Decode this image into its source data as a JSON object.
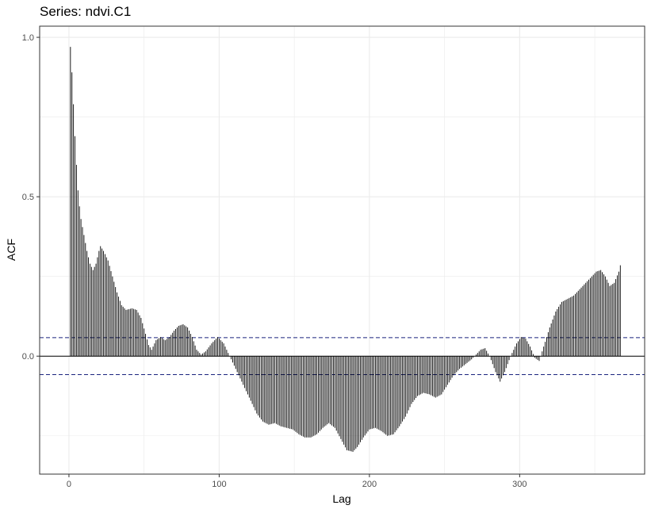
{
  "chart_data": {
    "type": "bar",
    "title": "Series: ndvi.C1",
    "xlabel": "Lag",
    "ylabel": "ACF",
    "xlim": [
      -19.5,
      383.2
    ],
    "ylim": [
      -0.37,
      1.035
    ],
    "x_ticks": [
      0,
      100,
      200,
      300
    ],
    "y_ticks": [
      0.0,
      0.5,
      1.0
    ],
    "x_tick_labels": [
      "0",
      "100",
      "200",
      "300"
    ],
    "y_tick_labels": [
      "0.0",
      "0.5",
      "1.0"
    ],
    "grid": true,
    "confidence_bound": 0.058,
    "colors": {
      "bars": "#000000",
      "bounds": "#1a237e",
      "grid": "#ebebeb",
      "panel_border": "#333333"
    },
    "lag_step": 1,
    "lag_start": 1,
    "keypoints": [
      [
        1,
        0.97
      ],
      [
        2,
        0.89
      ],
      [
        3,
        0.79
      ],
      [
        4,
        0.69
      ],
      [
        5,
        0.6
      ],
      [
        6,
        0.52
      ],
      [
        7,
        0.47
      ],
      [
        8,
        0.43
      ],
      [
        10,
        0.38
      ],
      [
        12,
        0.33
      ],
      [
        14,
        0.29
      ],
      [
        16,
        0.27
      ],
      [
        18,
        0.29
      ],
      [
        20,
        0.33
      ],
      [
        21,
        0.345
      ],
      [
        23,
        0.33
      ],
      [
        26,
        0.3
      ],
      [
        29,
        0.25
      ],
      [
        32,
        0.2
      ],
      [
        35,
        0.16
      ],
      [
        38,
        0.145
      ],
      [
        42,
        0.15
      ],
      [
        45,
        0.145
      ],
      [
        48,
        0.12
      ],
      [
        51,
        0.07
      ],
      [
        53,
        0.035
      ],
      [
        55,
        0.02
      ],
      [
        58,
        0.05
      ],
      [
        61,
        0.06
      ],
      [
        64,
        0.05
      ],
      [
        67,
        0.06
      ],
      [
        70,
        0.08
      ],
      [
        73,
        0.095
      ],
      [
        76,
        0.1
      ],
      [
        79,
        0.09
      ],
      [
        82,
        0.06
      ],
      [
        85,
        0.02
      ],
      [
        88,
        0.005
      ],
      [
        91,
        0.015
      ],
      [
        95,
        0.04
      ],
      [
        99,
        0.06
      ],
      [
        103,
        0.04
      ],
      [
        107,
        0.0
      ],
      [
        110,
        -0.03
      ],
      [
        113,
        -0.06
      ],
      [
        117,
        -0.1
      ],
      [
        121,
        -0.14
      ],
      [
        125,
        -0.18
      ],
      [
        129,
        -0.205
      ],
      [
        133,
        -0.215
      ],
      [
        137,
        -0.21
      ],
      [
        141,
        -0.22
      ],
      [
        145,
        -0.225
      ],
      [
        149,
        -0.23
      ],
      [
        153,
        -0.245
      ],
      [
        157,
        -0.255
      ],
      [
        161,
        -0.255
      ],
      [
        165,
        -0.245
      ],
      [
        169,
        -0.225
      ],
      [
        173,
        -0.21
      ],
      [
        177,
        -0.225
      ],
      [
        181,
        -0.26
      ],
      [
        185,
        -0.295
      ],
      [
        189,
        -0.3
      ],
      [
        192,
        -0.285
      ],
      [
        196,
        -0.255
      ],
      [
        200,
        -0.23
      ],
      [
        204,
        -0.225
      ],
      [
        208,
        -0.235
      ],
      [
        212,
        -0.25
      ],
      [
        216,
        -0.245
      ],
      [
        220,
        -0.22
      ],
      [
        224,
        -0.19
      ],
      [
        228,
        -0.15
      ],
      [
        232,
        -0.125
      ],
      [
        236,
        -0.115
      ],
      [
        240,
        -0.12
      ],
      [
        244,
        -0.13
      ],
      [
        248,
        -0.12
      ],
      [
        252,
        -0.09
      ],
      [
        256,
        -0.06
      ],
      [
        260,
        -0.04
      ],
      [
        264,
        -0.025
      ],
      [
        268,
        -0.01
      ],
      [
        271,
        0.005
      ],
      [
        274,
        0.02
      ],
      [
        277,
        0.025
      ],
      [
        280,
        0.0
      ],
      [
        284,
        -0.05
      ],
      [
        287,
        -0.08
      ],
      [
        290,
        -0.05
      ],
      [
        294,
        0.0
      ],
      [
        298,
        0.04
      ],
      [
        301,
        0.06
      ],
      [
        304,
        0.055
      ],
      [
        307,
        0.03
      ],
      [
        310,
        -0.005
      ],
      [
        313,
        -0.015
      ],
      [
        316,
        0.03
      ],
      [
        320,
        0.09
      ],
      [
        324,
        0.14
      ],
      [
        328,
        0.17
      ],
      [
        332,
        0.18
      ],
      [
        336,
        0.19
      ],
      [
        340,
        0.21
      ],
      [
        344,
        0.23
      ],
      [
        348,
        0.25
      ],
      [
        351,
        0.265
      ],
      [
        354,
        0.27
      ],
      [
        357,
        0.25
      ],
      [
        360,
        0.22
      ],
      [
        363,
        0.23
      ],
      [
        366,
        0.265
      ],
      [
        367,
        0.285
      ]
    ]
  }
}
